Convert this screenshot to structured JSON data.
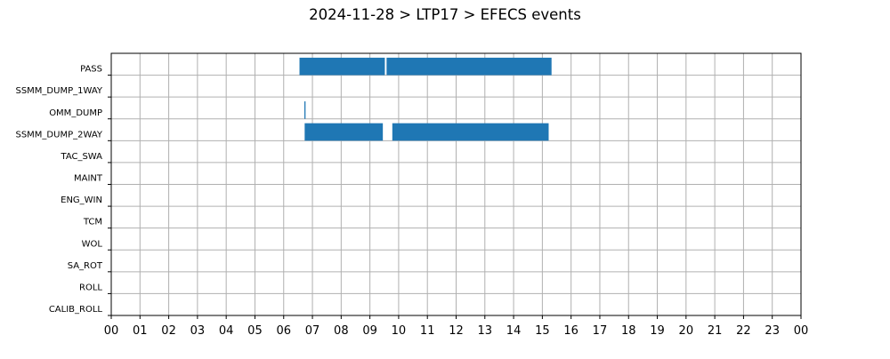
{
  "chart_data": {
    "type": "timeline",
    "title": "2024-11-28 > LTP17 > EFECS events",
    "xlabel": "",
    "ylabel": "",
    "x_unit": "hour",
    "x_range_hours": [
      0,
      24
    ],
    "grid": true,
    "legend": "none",
    "colors": {
      "bar": "#1f77b4",
      "grid": "#b0b0b0",
      "axis": "#000000"
    },
    "x_tick_labels": [
      "00",
      "01",
      "02",
      "03",
      "04",
      "05",
      "06",
      "07",
      "08",
      "09",
      "10",
      "11",
      "12",
      "13",
      "14",
      "15",
      "16",
      "17",
      "18",
      "19",
      "20",
      "21",
      "22",
      "23",
      "00"
    ],
    "categories": [
      "PASS",
      "SSMM_DUMP_1WAY",
      "OMM_DUMP",
      "SSMM_DUMP_2WAY",
      "TAC_SWA",
      "MAINT",
      "ENG_WIN",
      "TCM",
      "WOL",
      "SA_ROT",
      "ROLL",
      "CALIB_ROLL"
    ],
    "events": [
      {
        "category": "PASS",
        "start_hour": 6.55,
        "end_hour": 9.52
      },
      {
        "category": "PASS",
        "start_hour": 9.58,
        "end_hour": 15.32
      },
      {
        "category": "OMM_DUMP",
        "start_hour": 6.72,
        "end_hour": 6.76
      },
      {
        "category": "SSMM_DUMP_2WAY",
        "start_hour": 6.73,
        "end_hour": 9.45
      },
      {
        "category": "SSMM_DUMP_2WAY",
        "start_hour": 9.78,
        "end_hour": 15.22
      }
    ]
  }
}
